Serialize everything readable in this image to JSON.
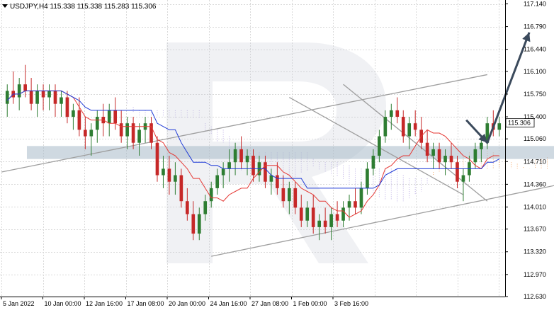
{
  "header": {
    "symbol": "USDJPY,H4",
    "ohlc": [
      "115.338",
      "115.338",
      "115.283",
      "115.306"
    ]
  },
  "colors": {
    "bull": "#2e7d32",
    "bear": "#c62828",
    "tenkan": "#e53935",
    "kijun": "#1e3ad6",
    "cloud": "#f4a460",
    "cloud2": "#b0a0e0",
    "channel": "#9e9e9e",
    "zone": "#a7b9c9",
    "arrow": "#3b4a5c",
    "grid": "#d9d9d9"
  },
  "chart_data": {
    "type": "candlestick",
    "symbol": "USDJPY",
    "timeframe": "H4",
    "last_price": "115.306",
    "ylim": [
      112.63,
      117.2
    ],
    "y_ticks": [
      "117.140",
      "116.790",
      "116.440",
      "116.100",
      "115.750",
      "115.400",
      "115.060",
      "114.710",
      "114.360",
      "114.010",
      "113.670",
      "113.320",
      "112.970",
      "112.630"
    ],
    "x_ticks": [
      "5 Jan 2022",
      "10 Jan 00:00",
      "12 Jan 16:00",
      "17 Jan 08:00",
      "20 Jan 00:00",
      "24 Jan 16:00",
      "27 Jan 08:00",
      "1 Feb 00:00",
      "3 Feb 16:00"
    ],
    "candles": [
      [
        115.6,
        115.9,
        115.4,
        115.8
      ],
      [
        115.8,
        116.1,
        115.6,
        115.7
      ],
      [
        115.7,
        116.0,
        115.5,
        115.9
      ],
      [
        115.9,
        116.2,
        115.7,
        115.8
      ],
      [
        115.8,
        116.0,
        115.5,
        115.6
      ],
      [
        115.6,
        115.9,
        115.4,
        115.8
      ],
      [
        115.8,
        115.9,
        115.5,
        115.7
      ],
      [
        115.7,
        115.9,
        115.5,
        115.8
      ],
      [
        115.8,
        115.9,
        115.4,
        115.6
      ],
      [
        115.6,
        115.8,
        115.4,
        115.7
      ],
      [
        115.7,
        115.8,
        115.3,
        115.4
      ],
      [
        115.4,
        115.6,
        115.2,
        115.5
      ],
      [
        115.5,
        115.7,
        115.1,
        115.2
      ],
      [
        115.2,
        115.4,
        114.9,
        115.1
      ],
      [
        115.1,
        115.3,
        114.8,
        115.2
      ],
      [
        115.2,
        115.5,
        115.0,
        115.4
      ],
      [
        115.4,
        115.6,
        115.1,
        115.3
      ],
      [
        115.3,
        115.6,
        115.1,
        115.5
      ],
      [
        115.5,
        115.7,
        115.2,
        115.3
      ],
      [
        115.3,
        115.5,
        115.0,
        115.1
      ],
      [
        115.1,
        115.4,
        114.9,
        115.3
      ],
      [
        115.3,
        115.4,
        114.9,
        115.0
      ],
      [
        115.0,
        115.3,
        114.8,
        115.2
      ],
      [
        115.2,
        115.4,
        115.0,
        115.3
      ],
      [
        115.3,
        115.4,
        114.9,
        115.0
      ],
      [
        115.0,
        115.1,
        114.4,
        114.5
      ],
      [
        114.5,
        114.8,
        114.3,
        114.6
      ],
      [
        114.6,
        114.8,
        114.2,
        114.4
      ],
      [
        114.4,
        114.7,
        114.2,
        114.5
      ],
      [
        114.5,
        114.6,
        114.0,
        114.1
      ],
      [
        114.1,
        114.3,
        113.8,
        113.9
      ],
      [
        113.9,
        114.1,
        113.5,
        113.6
      ],
      [
        113.6,
        114.0,
        113.5,
        113.9
      ],
      [
        113.9,
        114.2,
        113.8,
        114.1
      ],
      [
        114.1,
        114.4,
        114.0,
        114.3
      ],
      [
        114.3,
        114.6,
        114.2,
        114.5
      ],
      [
        114.5,
        114.7,
        114.3,
        114.6
      ],
      [
        114.6,
        114.9,
        114.4,
        114.7
      ],
      [
        114.7,
        115.0,
        114.5,
        114.9
      ],
      [
        114.9,
        115.1,
        114.6,
        114.7
      ],
      [
        114.7,
        114.9,
        114.5,
        114.8
      ],
      [
        114.8,
        114.9,
        114.4,
        114.5
      ],
      [
        114.5,
        114.8,
        114.4,
        114.7
      ],
      [
        114.7,
        114.8,
        114.3,
        114.4
      ],
      [
        114.4,
        114.6,
        114.2,
        114.5
      ],
      [
        114.5,
        114.7,
        114.2,
        114.3
      ],
      [
        114.3,
        114.5,
        114.0,
        114.1
      ],
      [
        114.1,
        114.4,
        113.9,
        114.3
      ],
      [
        114.3,
        114.4,
        113.9,
        114.0
      ],
      [
        114.0,
        114.2,
        113.7,
        113.8
      ],
      [
        113.8,
        114.1,
        113.7,
        114.0
      ],
      [
        114.0,
        114.2,
        113.6,
        113.7
      ],
      [
        113.7,
        113.9,
        113.5,
        113.8
      ],
      [
        113.8,
        114.0,
        113.6,
        113.7
      ],
      [
        113.7,
        114.0,
        113.5,
        113.9
      ],
      [
        113.9,
        114.1,
        113.7,
        113.8
      ],
      [
        113.8,
        114.1,
        113.7,
        114.0
      ],
      [
        114.0,
        114.2,
        113.8,
        114.1
      ],
      [
        114.1,
        114.3,
        113.9,
        114.0
      ],
      [
        114.0,
        114.4,
        113.9,
        114.3
      ],
      [
        114.3,
        114.7,
        114.2,
        114.6
      ],
      [
        114.6,
        114.9,
        114.5,
        114.8
      ],
      [
        114.8,
        115.2,
        114.7,
        115.1
      ],
      [
        115.1,
        115.5,
        115.0,
        115.4
      ],
      [
        115.4,
        115.6,
        115.2,
        115.5
      ],
      [
        115.5,
        115.7,
        115.3,
        115.4
      ],
      [
        115.4,
        115.5,
        115.0,
        115.1
      ],
      [
        115.1,
        115.4,
        114.9,
        115.3
      ],
      [
        115.3,
        115.5,
        115.1,
        115.2
      ],
      [
        115.2,
        115.4,
        114.9,
        115.0
      ],
      [
        115.0,
        115.2,
        114.7,
        114.8
      ],
      [
        114.8,
        115.0,
        114.6,
        114.9
      ],
      [
        114.9,
        115.0,
        114.6,
        114.7
      ],
      [
        114.7,
        114.9,
        114.5,
        114.8
      ],
      [
        114.8,
        115.0,
        114.6,
        114.7
      ],
      [
        114.7,
        114.8,
        114.3,
        114.4
      ],
      [
        114.4,
        114.6,
        114.1,
        114.5
      ],
      [
        114.5,
        114.8,
        114.4,
        114.7
      ],
      [
        114.7,
        115.0,
        114.6,
        114.9
      ],
      [
        114.9,
        115.1,
        114.7,
        115.0
      ],
      [
        115.0,
        115.4,
        114.9,
        115.3
      ],
      [
        115.3,
        115.5,
        115.1,
        115.2
      ],
      [
        115.2,
        115.4,
        115.1,
        115.3
      ]
    ],
    "annotations": [
      {
        "type": "channel_line",
        "points": [
          [
            0,
            114.55
          ],
          [
            80,
            116.05
          ]
        ]
      },
      {
        "type": "channel_line",
        "points": [
          [
            34,
            113.25
          ],
          [
            110,
            114.7
          ]
        ]
      },
      {
        "type": "channel_line",
        "points": [
          [
            47,
            115.7
          ],
          [
            76,
            114.2
          ]
        ]
      },
      {
        "type": "channel_line",
        "points": [
          [
            56,
            115.9
          ],
          [
            80,
            114.1
          ]
        ]
      },
      {
        "type": "support_zone",
        "y_range": [
          114.75,
          114.95
        ],
        "x_range": [
          8,
          105
        ]
      },
      {
        "type": "forecast_arrow",
        "points": [
          [
            76.5,
            115.35
          ],
          [
            80,
            115.0
          ],
          [
            87,
            116.7
          ]
        ]
      }
    ]
  }
}
